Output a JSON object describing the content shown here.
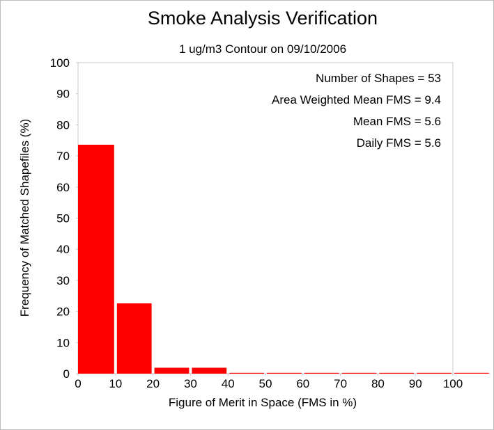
{
  "chart_data": {
    "type": "bar",
    "title": "Smoke Analysis Verification",
    "subtitle": "1 ug/m3 Contour on 09/10/2006",
    "xlabel": "Figure of Merit in Space (FMS in %)",
    "ylabel": "Frequency of Matched Shapefiles (%)",
    "xlim": [
      0,
      110
    ],
    "ylim": [
      0,
      100
    ],
    "x_ticks": [
      0,
      10,
      20,
      30,
      40,
      50,
      60,
      70,
      80,
      90,
      100
    ],
    "y_ticks": [
      0,
      10,
      20,
      30,
      40,
      50,
      60,
      70,
      80,
      90,
      100
    ],
    "bins": [
      {
        "start": 0,
        "end": 10,
        "value": 73.6
      },
      {
        "start": 10,
        "end": 20,
        "value": 22.6
      },
      {
        "start": 20,
        "end": 30,
        "value": 1.9
      },
      {
        "start": 30,
        "end": 40,
        "value": 1.9
      },
      {
        "start": 40,
        "end": 50,
        "value": 0
      },
      {
        "start": 50,
        "end": 60,
        "value": 0
      },
      {
        "start": 60,
        "end": 70,
        "value": 0
      },
      {
        "start": 70,
        "end": 80,
        "value": 0
      },
      {
        "start": 80,
        "end": 90,
        "value": 0
      },
      {
        "start": 90,
        "end": 100,
        "value": 0
      },
      {
        "start": 100,
        "end": 110,
        "value": 0
      }
    ],
    "bar_color": "#ff0000",
    "grid": false,
    "stats": [
      "Number of Shapes = 53",
      "Area Weighted Mean FMS = 9.4",
      "Mean FMS = 5.6",
      "Daily FMS = 5.6"
    ]
  }
}
